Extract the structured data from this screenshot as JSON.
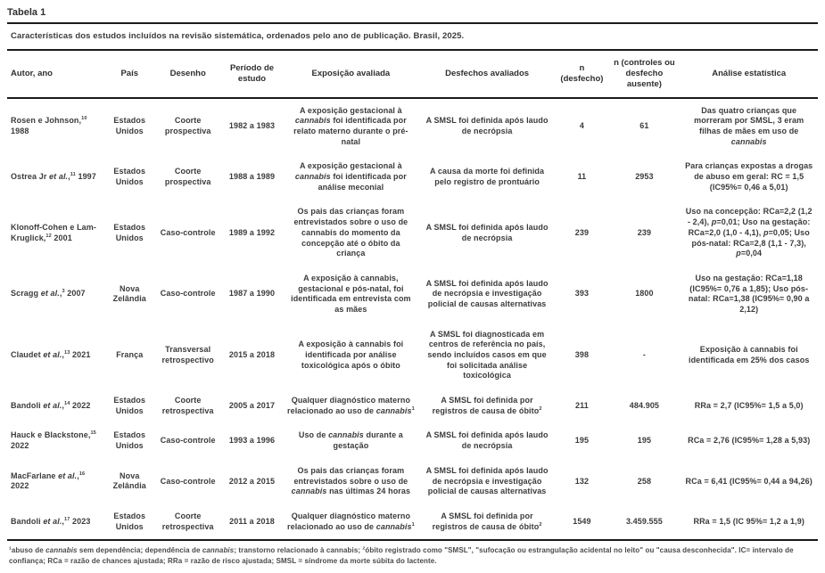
{
  "table": {
    "label": "Tabela 1",
    "caption": "Características dos estudos incluídos na revisão sistemática, ordenados pelo ano de publicação. Brasil, 2025.",
    "columns": [
      "Autor, ano",
      "País",
      "Desenho",
      "Período de estudo",
      "Exposição avaliada",
      "Desfechos avaliados",
      "n (desfecho)",
      "n (controles ou desfecho ausente)",
      "Análise estatística"
    ],
    "rows": [
      {
        "author": "Rosen e Johnson,^{10} 1988",
        "country": "Estados Unidos",
        "design": "Coorte prospectiva",
        "period": "1982 a 1983",
        "exposure": "A exposição gestacional à *cannabis* foi identificada por relato materno durante o pré-natal",
        "outcomes": "A SMSL foi definida após laudo de necrópsia",
        "n_outcome": "4",
        "n_control": "61",
        "analysis": "Das quatro crianças que morreram por SMSL, 3 eram filhas de mães em uso de *cannabis*"
      },
      {
        "author": "Ostrea Jr *et al.*,^{11} 1997",
        "country": "Estados Unidos",
        "design": "Coorte prospectiva",
        "period": "1988 a 1989",
        "exposure": "A exposição gestacional à *cannabis* foi identificada por análise meconial",
        "outcomes": "A causa da morte foi definida pelo registro de prontuário",
        "n_outcome": "11",
        "n_control": "2953",
        "analysis": "Para crianças expostas a drogas de abuso em geral: RC = 1,5 (IC95%= 0,46 a 5,01)"
      },
      {
        "author": "Klonoff-Cohen e Lam-Kruglick,^{12} 2001",
        "country": "Estados Unidos",
        "design": "Caso-controle",
        "period": "1989 a 1992",
        "exposure": "Os pais das crianças foram entrevistados sobre o uso de cannabis do momento da concepção até o óbito da criança",
        "outcomes": "A SMSL foi definida após laudo de necrópsia",
        "n_outcome": "239",
        "n_control": "239",
        "analysis": "Uso na concepção: RCa=2,2 (1,2 - 2,4), *p*=0,01; Uso na gestação: RCa=2,0 (1,0 - 4,1), *p*=0,05; Uso pós-natal: RCa=2,8 (1,1 - 7,3), *p*=0,04"
      },
      {
        "author": "Scragg *et al.*,^{3} 2007",
        "country": "Nova Zelândia",
        "design": "Caso-controle",
        "period": "1987 a 1990",
        "exposure": "A exposição à cannabis, gestacional e pós-natal, foi identificada em entrevista com as mães",
        "outcomes": "A SMSL foi definida após laudo de necrópsia e investigação policial de causas alternativas",
        "n_outcome": "393",
        "n_control": "1800",
        "analysis": "Uso na gestação: RCa=1,18 (IC95%= 0,76 a 1,85); Uso pós-natal: RCa=1,38 (IC95%= 0,90 a 2,12)"
      },
      {
        "author": "Claudet *et al.*,^{13} 2021",
        "country": "França",
        "design": "Transversal retrospectivo",
        "period": "2015 a 2018",
        "exposure": "A exposição à cannabis foi identificada por análise toxicológica após o óbito",
        "outcomes": "A SMSL foi diagnosticada em centros de referência no país, sendo incluídos casos em que foi solicitada análise toxicológica",
        "n_outcome": "398",
        "n_control": "-",
        "analysis": "Exposição à cannabis foi identificada em 25% dos casos"
      },
      {
        "author": "Bandoli *et al.*,^{14} 2022",
        "country": "Estados Unidos",
        "design": "Coorte retrospectiva",
        "period": "2005 a 2017",
        "exposure": "Qualquer diagnóstico materno relacionado ao uso de *cannabis*^{1}",
        "outcomes": "A SMSL foi definida por registros de causa de óbito^{2}",
        "n_outcome": "211",
        "n_control": "484.905",
        "analysis": "RRa = 2,7 (IC95%= 1,5 a 5,0)"
      },
      {
        "author": "Hauck e Blackstone,^{15} 2022",
        "country": "Estados Unidos",
        "design": "Caso-controle",
        "period": "1993 a 1996",
        "exposure": "Uso de *cannabis* durante a gestação",
        "outcomes": "A SMSL foi definida após laudo de necrópsia",
        "n_outcome": "195",
        "n_control": "195",
        "analysis": "RCa = 2,76 (IC95%= 1,28 a 5,93)"
      },
      {
        "author": "MacFarlane *et al.*,^{16} 2022",
        "country": "Nova Zelândia",
        "design": "Caso-controle",
        "period": "2012 a 2015",
        "exposure": "Os pais das crianças foram entrevistados sobre o uso de *cannabis* nas últimas 24 horas",
        "outcomes": "A SMSL foi definida após laudo de necrópsia e investigação policial de causas alternativas",
        "n_outcome": "132",
        "n_control": "258",
        "analysis": "RCa = 6,41 (IC95%= 0,44 a 94,26)"
      },
      {
        "author": "Bandoli *et al.*,^{17} 2023",
        "country": "Estados Unidos",
        "design": "Coorte retrospectiva",
        "period": "2011 a 2018",
        "exposure": "Qualquer diagnóstico materno relacionado ao uso de *cannabis*^{1}",
        "outcomes": "A SMSL foi definida por registros de causa de óbito^{2}",
        "n_outcome": "1549",
        "n_control": "3.459.555",
        "analysis": "RRa = 1,5 (IC 95%= 1,2 a 1,9)"
      }
    ],
    "footnotes": "^{1}abuso de *cannabis* sem dependência; dependência de *cannabis*; transtorno relacionado à cannabis; ^{2}óbito registrado como \"SMSL\", \"sufocação ou estrangulação acidental no leito\" ou \"causa desconhecida\". IC= intervalo de confiança; RCa = razão de chances ajustada; RRa = razão de risco ajustada; SMSL = síndrome da morte súbita do lactente."
  }
}
